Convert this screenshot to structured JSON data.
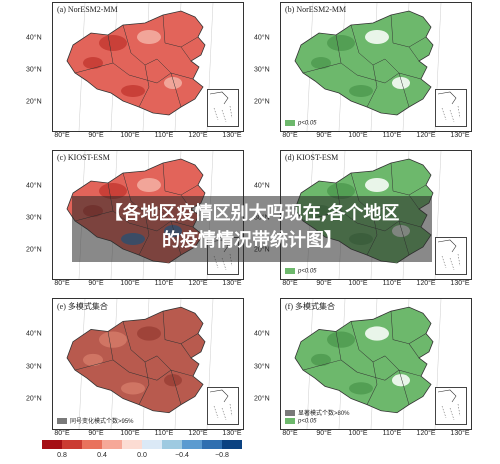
{
  "panels": [
    {
      "title": "(a) NorESM2-MM",
      "legend": "",
      "fill": "#e2645a"
    },
    {
      "title": "(b) NorESM2-MM",
      "legend": "p<0.05",
      "fill": "#6db86c"
    },
    {
      "title": "(c) KIOST-ESM",
      "legend": "",
      "fill": "#e2645a"
    },
    {
      "title": "(d) KIOST-ESM",
      "legend": "p<0.05",
      "fill": "#6db86c"
    },
    {
      "title": "(e) 多模式集合",
      "legend": "同号变化模式个数>95%",
      "fill": "#b85a4e"
    },
    {
      "title": "(f) 多模式集合",
      "legend": "显著模式个数>80%",
      "legend2": "p<0.05",
      "fill": "#6db86c"
    }
  ],
  "axes": {
    "xticks": [
      "80°E",
      "90°E",
      "100°E",
      "110°E",
      "120°E",
      "130°E"
    ],
    "yticks": [
      "40°N",
      "30°N",
      "20°N"
    ]
  },
  "colorbar": {
    "labels": [
      "0.8",
      "0.4",
      "0.0",
      "−0.4",
      "−0.8"
    ],
    "colors": [
      "#a50f15",
      "#cb3b32",
      "#e9725d",
      "#f6a898",
      "#fcdcd3",
      "#dbe9f6",
      "#9ecae1",
      "#5b9bd0",
      "#2f6fb0",
      "#0b4281"
    ]
  },
  "banner": {
    "line1": "【各地区疫情区别大吗现在,各个地区",
    "line2": "的疫情情况带统计图】"
  },
  "chart_data": [
    {
      "type": "heatmap",
      "title": "(a) NorESM2-MM",
      "xlabel": "",
      "ylabel": "",
      "x_ticks": [
        "80°E",
        "90°E",
        "100°E",
        "110°E",
        "120°E",
        "130°E"
      ],
      "y_ticks": [
        "40°N",
        "30°N",
        "20°N"
      ]
    },
    {
      "type": "heatmap",
      "title": "(b) NorESM2-MM",
      "legend": [
        "p<0.05"
      ]
    },
    {
      "type": "heatmap",
      "title": "(c) KIOST-ESM"
    },
    {
      "type": "heatmap",
      "title": "(d) KIOST-ESM",
      "legend": [
        "p<0.05"
      ]
    },
    {
      "type": "heatmap",
      "title": "(e) 多模式集合",
      "legend": [
        "同号变化模式个数>95%"
      ]
    },
    {
      "type": "heatmap",
      "title": "(f) 多模式集合",
      "legend": [
        "显著模式个数>80%",
        "p<0.05"
      ]
    }
  ]
}
